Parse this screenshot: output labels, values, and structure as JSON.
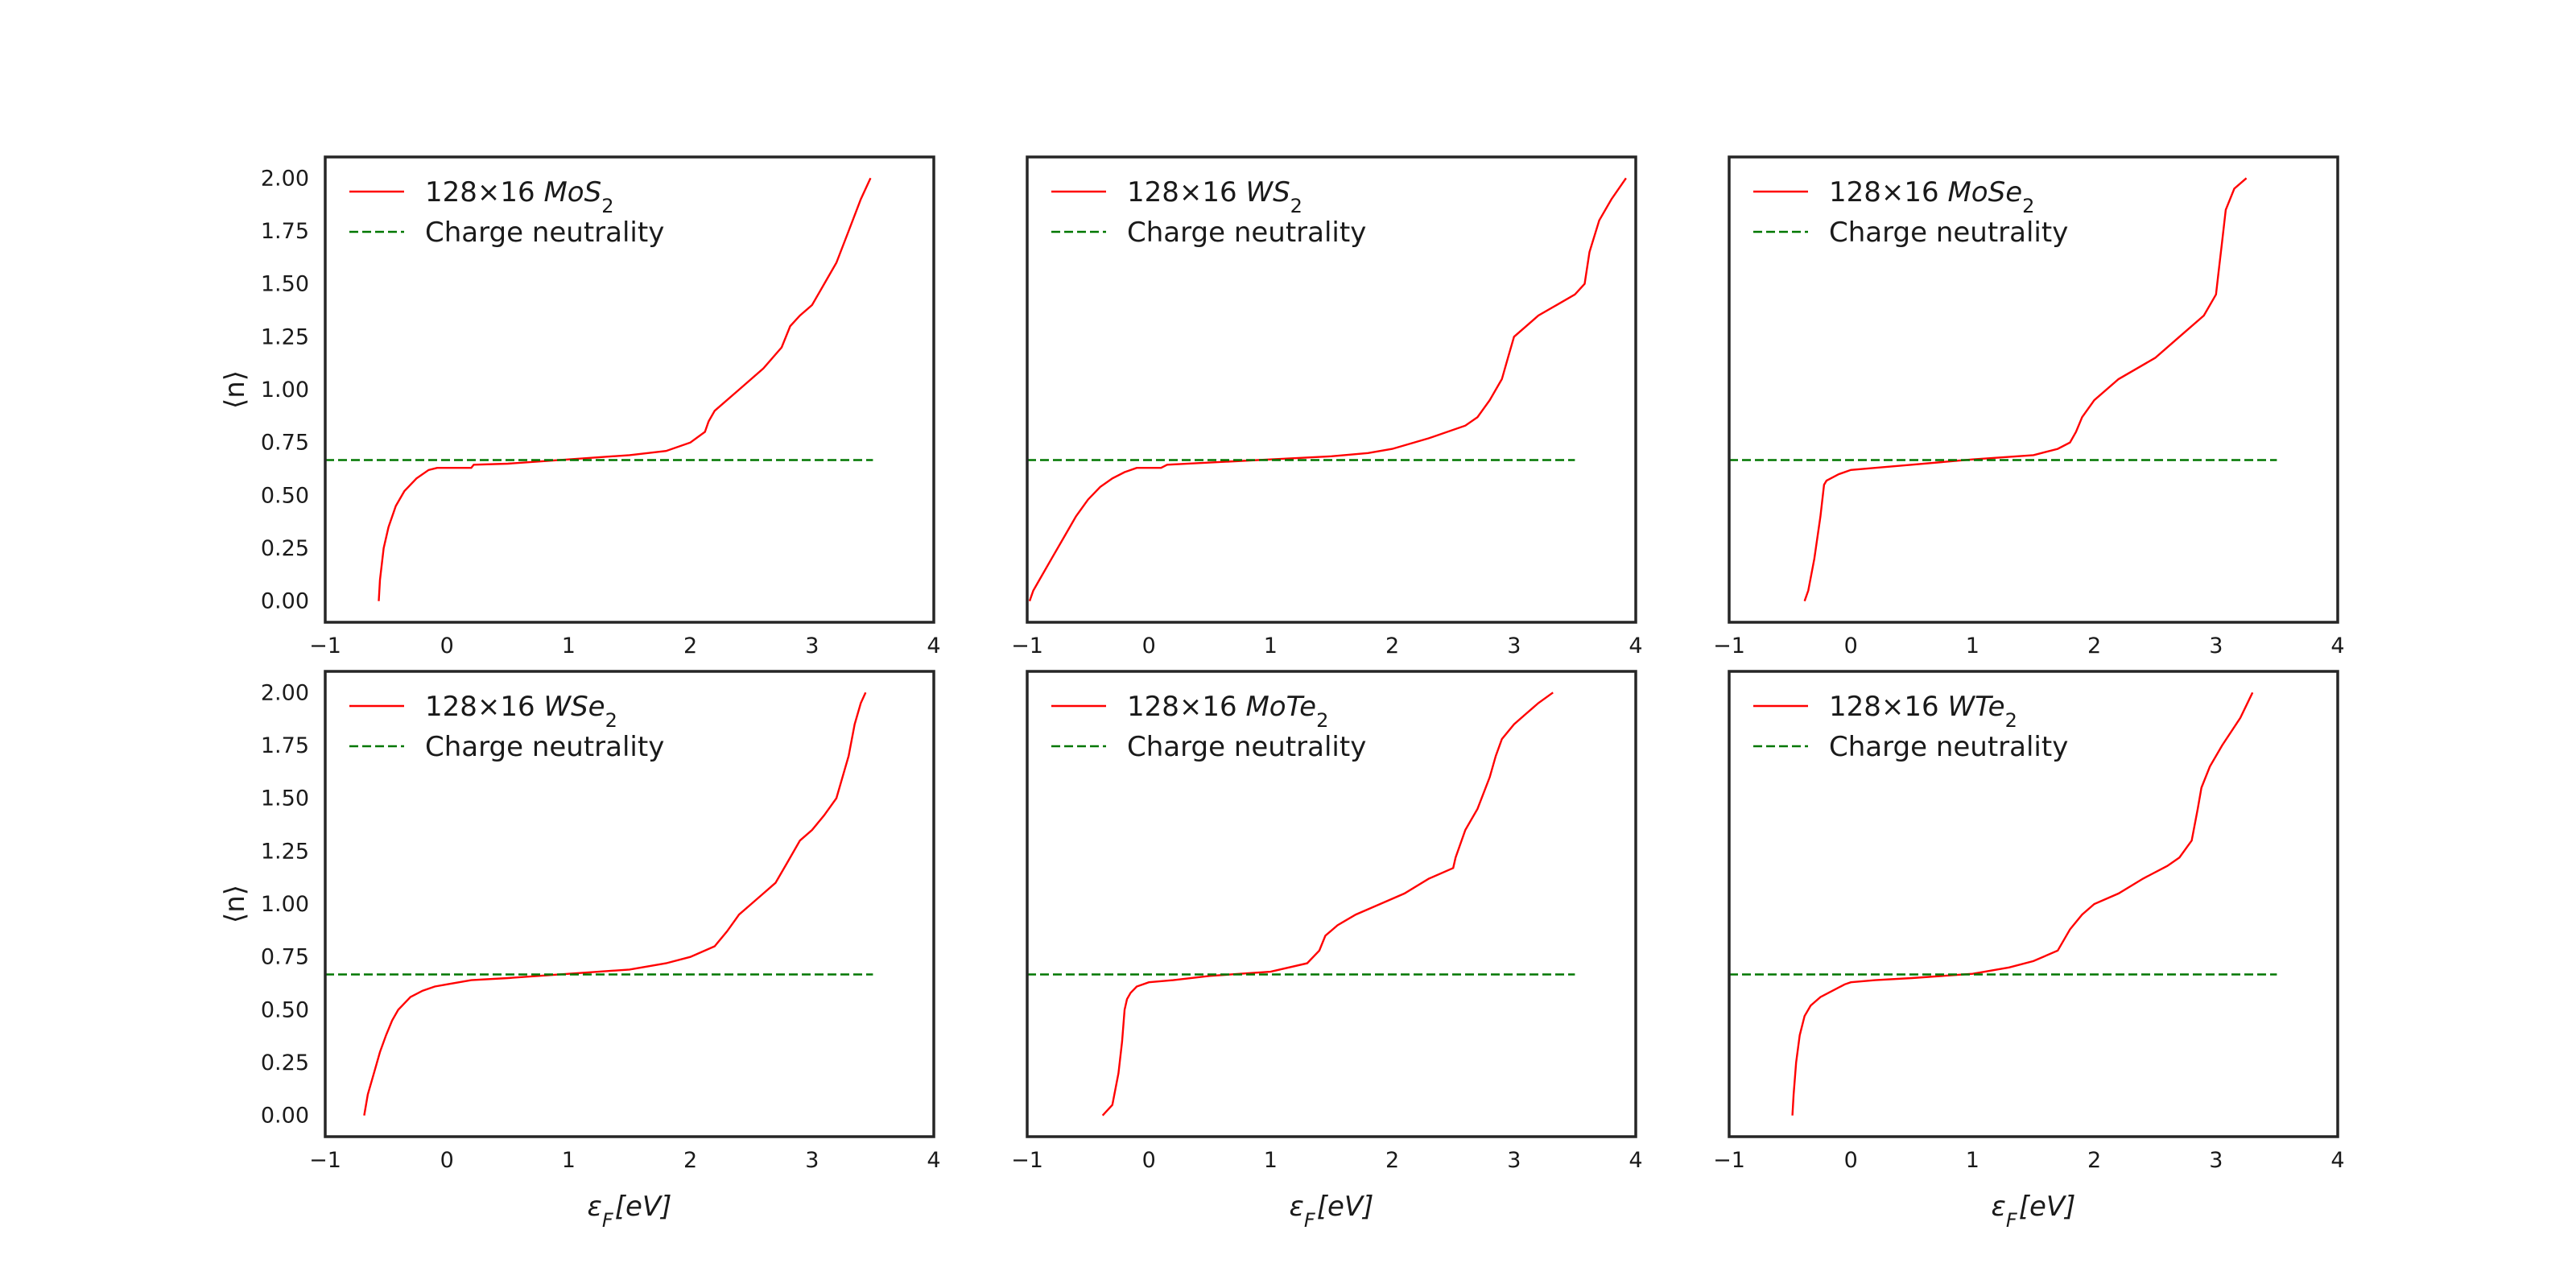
{
  "chart_data": [
    {
      "type": "line",
      "xlim": [
        -1,
        4
      ],
      "ylim": [
        -0.1,
        2.1
      ],
      "x_ticks": [
        "−1",
        "0",
        "1",
        "2",
        "3",
        "4"
      ],
      "y_ticks": [
        "0.00",
        "0.25",
        "0.50",
        "0.75",
        "1.00",
        "1.25",
        "1.50",
        "1.75",
        "2.00"
      ],
      "ylabel": "⟨n⟩",
      "xlabel": "",
      "grid": false,
      "legend_position": "upper-left",
      "series": [
        {
          "name": "128×16 MoS₂",
          "style": "solid",
          "color": "#ff0000",
          "x": [
            -0.56,
            -0.55,
            -0.52,
            -0.48,
            -0.42,
            -0.35,
            -0.25,
            -0.15,
            -0.08,
            0.2,
            0.22,
            0.5,
            1.0,
            1.5,
            1.8,
            2.0,
            2.12,
            2.15,
            2.2,
            2.4,
            2.6,
            2.75,
            2.82,
            2.9,
            3.0,
            3.1,
            3.2,
            3.3,
            3.4,
            3.48
          ],
          "y": [
            0.0,
            0.1,
            0.25,
            0.35,
            0.45,
            0.52,
            0.58,
            0.62,
            0.63,
            0.63,
            0.645,
            0.65,
            0.67,
            0.69,
            0.71,
            0.75,
            0.8,
            0.85,
            0.9,
            1.0,
            1.1,
            1.2,
            1.3,
            1.35,
            1.4,
            1.5,
            1.6,
            1.75,
            1.9,
            2.0
          ]
        },
        {
          "name": "Charge neutrality",
          "style": "dashed",
          "color": "#007700",
          "x": [
            -1,
            3.5
          ],
          "y": [
            0.667,
            0.667
          ]
        }
      ]
    },
    {
      "type": "line",
      "xlim": [
        -1,
        4
      ],
      "ylim": [
        -0.1,
        2.1
      ],
      "x_ticks": [
        "−1",
        "0",
        "1",
        "2",
        "3",
        "4"
      ],
      "y_ticks": [],
      "ylabel": "",
      "xlabel": "",
      "grid": false,
      "legend_position": "upper-left",
      "series": [
        {
          "name": "128×16 WS₂",
          "style": "solid",
          "color": "#ff0000",
          "x": [
            -0.98,
            -0.95,
            -0.9,
            -0.8,
            -0.7,
            -0.6,
            -0.5,
            -0.4,
            -0.3,
            -0.2,
            -0.1,
            0.0,
            0.1,
            0.15,
            0.5,
            1.0,
            1.5,
            1.8,
            2.0,
            2.3,
            2.6,
            2.7,
            2.8,
            2.9,
            2.95,
            3.0,
            3.1,
            3.2,
            3.35,
            3.5,
            3.58,
            3.62,
            3.7,
            3.8,
            3.92
          ],
          "y": [
            0.0,
            0.05,
            0.1,
            0.2,
            0.3,
            0.4,
            0.48,
            0.54,
            0.58,
            0.61,
            0.63,
            0.63,
            0.63,
            0.645,
            0.655,
            0.67,
            0.685,
            0.7,
            0.72,
            0.77,
            0.83,
            0.87,
            0.95,
            1.05,
            1.15,
            1.25,
            1.3,
            1.35,
            1.4,
            1.45,
            1.5,
            1.65,
            1.8,
            1.9,
            2.0
          ]
        },
        {
          "name": "Charge neutrality",
          "style": "dashed",
          "color": "#007700",
          "x": [
            -1,
            3.5
          ],
          "y": [
            0.667,
            0.667
          ]
        }
      ]
    },
    {
      "type": "line",
      "xlim": [
        -1,
        4
      ],
      "ylim": [
        -0.1,
        2.1
      ],
      "x_ticks": [
        "−1",
        "0",
        "1",
        "2",
        "3",
        "4"
      ],
      "y_ticks": [],
      "ylabel": "",
      "xlabel": "",
      "grid": false,
      "legend_position": "upper-left",
      "series": [
        {
          "name": "128×16 MoSe₂",
          "style": "solid",
          "color": "#ff0000",
          "x": [
            -0.38,
            -0.35,
            -0.3,
            -0.25,
            -0.22,
            -0.2,
            -0.1,
            0.0,
            0.2,
            0.5,
            1.0,
            1.5,
            1.7,
            1.8,
            1.85,
            1.9,
            2.0,
            2.2,
            2.5,
            2.7,
            2.9,
            3.0,
            3.02,
            3.05,
            3.08,
            3.15,
            3.25
          ],
          "y": [
            0.0,
            0.05,
            0.2,
            0.4,
            0.55,
            0.57,
            0.6,
            0.62,
            0.63,
            0.645,
            0.67,
            0.69,
            0.72,
            0.75,
            0.8,
            0.87,
            0.95,
            1.05,
            1.15,
            1.25,
            1.35,
            1.45,
            1.55,
            1.7,
            1.85,
            1.95,
            2.0
          ]
        },
        {
          "name": "Charge neutrality",
          "style": "dashed",
          "color": "#007700",
          "x": [
            -1,
            3.5
          ],
          "y": [
            0.667,
            0.667
          ]
        }
      ]
    },
    {
      "type": "line",
      "xlim": [
        -1,
        4
      ],
      "ylim": [
        -0.1,
        2.1
      ],
      "x_ticks": [
        "−1",
        "0",
        "1",
        "2",
        "3",
        "4"
      ],
      "y_ticks": [
        "0.00",
        "0.25",
        "0.50",
        "0.75",
        "1.00",
        "1.25",
        "1.50",
        "1.75",
        "2.00"
      ],
      "ylabel": "⟨n⟩",
      "xlabel": "εF[eV]",
      "grid": false,
      "legend_position": "upper-left",
      "series": [
        {
          "name": "128×16 WSe₂",
          "style": "solid",
          "color": "#ff0000",
          "x": [
            -0.68,
            -0.65,
            -0.6,
            -0.55,
            -0.5,
            -0.45,
            -0.4,
            -0.3,
            -0.2,
            -0.1,
            0.0,
            0.1,
            0.2,
            0.5,
            1.0,
            1.5,
            1.8,
            2.0,
            2.2,
            2.3,
            2.4,
            2.5,
            2.6,
            2.7,
            2.8,
            2.9,
            3.0,
            3.1,
            3.2,
            3.3,
            3.35,
            3.4,
            3.44
          ],
          "y": [
            0.0,
            0.1,
            0.2,
            0.3,
            0.38,
            0.45,
            0.5,
            0.56,
            0.59,
            0.61,
            0.62,
            0.63,
            0.64,
            0.65,
            0.67,
            0.69,
            0.72,
            0.75,
            0.8,
            0.87,
            0.95,
            1.0,
            1.05,
            1.1,
            1.2,
            1.3,
            1.35,
            1.42,
            1.5,
            1.7,
            1.85,
            1.95,
            2.0
          ]
        },
        {
          "name": "Charge neutrality",
          "style": "dashed",
          "color": "#007700",
          "x": [
            -1,
            3.5
          ],
          "y": [
            0.667,
            0.667
          ]
        }
      ]
    },
    {
      "type": "line",
      "xlim": [
        -1,
        4
      ],
      "ylim": [
        -0.1,
        2.1
      ],
      "x_ticks": [
        "−1",
        "0",
        "1",
        "2",
        "3",
        "4"
      ],
      "y_ticks": [],
      "ylabel": "",
      "xlabel": "εF[eV]",
      "grid": false,
      "legend_position": "upper-left",
      "series": [
        {
          "name": "128×16 MoTe₂",
          "style": "solid",
          "color": "#ff0000",
          "x": [
            -0.38,
            -0.3,
            -0.25,
            -0.22,
            -0.2,
            -0.18,
            -0.15,
            -0.1,
            0.0,
            0.2,
            0.5,
            1.0,
            1.3,
            1.4,
            1.45,
            1.55,
            1.7,
            1.9,
            2.1,
            2.3,
            2.5,
            2.52,
            2.6,
            2.7,
            2.8,
            2.85,
            2.9,
            3.0,
            3.1,
            3.2,
            3.32
          ],
          "y": [
            0.0,
            0.05,
            0.2,
            0.35,
            0.5,
            0.55,
            0.58,
            0.61,
            0.63,
            0.64,
            0.66,
            0.68,
            0.72,
            0.78,
            0.85,
            0.9,
            0.95,
            1.0,
            1.05,
            1.12,
            1.17,
            1.22,
            1.35,
            1.45,
            1.6,
            1.7,
            1.78,
            1.85,
            1.9,
            1.95,
            2.0
          ]
        },
        {
          "name": "Charge neutrality",
          "style": "dashed",
          "color": "#007700",
          "x": [
            -1,
            3.5
          ],
          "y": [
            0.667,
            0.667
          ]
        }
      ]
    },
    {
      "type": "line",
      "xlim": [
        -1,
        4
      ],
      "ylim": [
        -0.1,
        2.1
      ],
      "x_ticks": [
        "−1",
        "0",
        "1",
        "2",
        "3",
        "4"
      ],
      "y_ticks": [],
      "ylabel": "",
      "xlabel": "εF[eV]",
      "grid": false,
      "legend_position": "upper-left",
      "series": [
        {
          "name": "128×16 WTe₂",
          "style": "solid",
          "color": "#ff0000",
          "x": [
            -0.48,
            -0.47,
            -0.45,
            -0.42,
            -0.38,
            -0.33,
            -0.25,
            -0.15,
            -0.05,
            0.0,
            0.2,
            0.5,
            1.0,
            1.3,
            1.5,
            1.7,
            1.75,
            1.8,
            1.9,
            2.0,
            2.2,
            2.4,
            2.6,
            2.7,
            2.8,
            2.85,
            2.88,
            2.95,
            3.05,
            3.2,
            3.3
          ],
          "y": [
            0.0,
            0.1,
            0.25,
            0.38,
            0.47,
            0.52,
            0.56,
            0.59,
            0.62,
            0.63,
            0.64,
            0.65,
            0.67,
            0.7,
            0.73,
            0.78,
            0.83,
            0.88,
            0.95,
            1.0,
            1.05,
            1.12,
            1.18,
            1.22,
            1.3,
            1.45,
            1.55,
            1.65,
            1.75,
            1.88,
            2.0
          ]
        },
        {
          "name": "Charge neutrality",
          "style": "dashed",
          "color": "#007700",
          "x": [
            -1,
            3.5
          ],
          "y": [
            0.667,
            0.667
          ]
        }
      ]
    }
  ]
}
